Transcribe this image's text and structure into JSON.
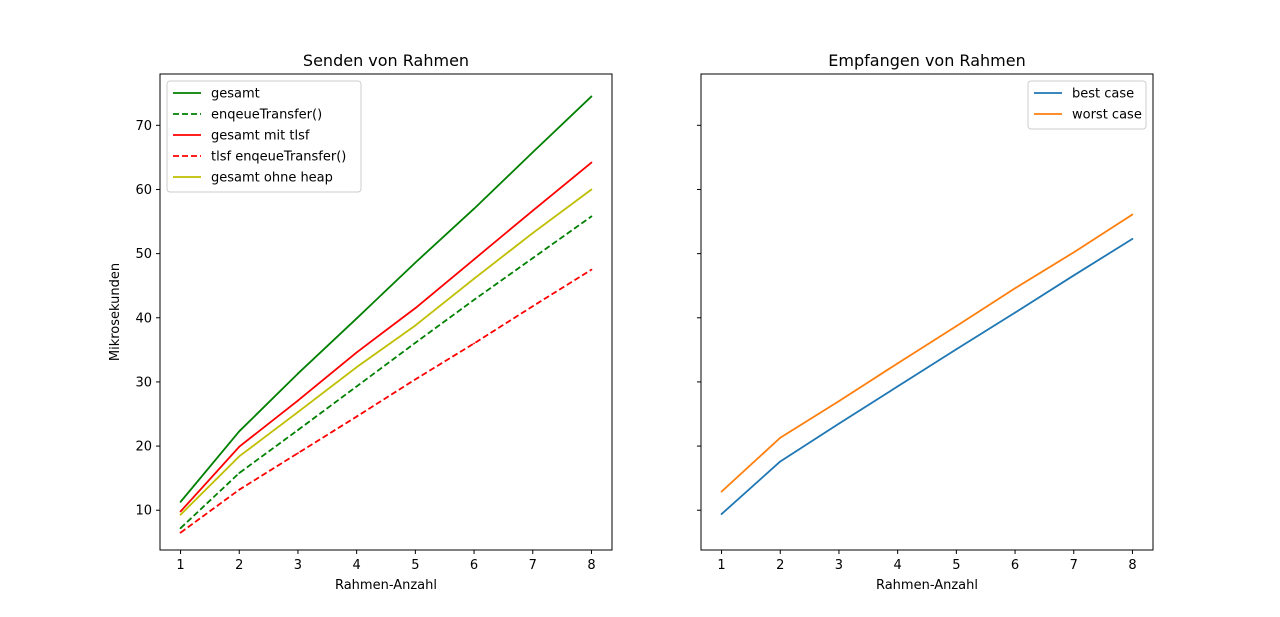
{
  "chart_data": [
    {
      "type": "line",
      "title": "Senden von Rahmen",
      "xlabel": "Rahmen-Anzahl",
      "ylabel": "Mikrosekunden",
      "x": [
        1,
        2,
        3,
        4,
        5,
        6,
        7,
        8
      ],
      "xlim": [
        0.65,
        8.35
      ],
      "ylim": [
        3.8,
        78
      ],
      "xticks": [
        1,
        2,
        3,
        4,
        5,
        6,
        7,
        8
      ],
      "yticks": [
        10,
        20,
        30,
        40,
        50,
        60,
        70
      ],
      "grid": false,
      "legend_position": "upper-left",
      "series": [
        {
          "name": "gesamt",
          "color": "#008000",
          "linestyle": "solid",
          "values": [
            11.3,
            22.3,
            31.3,
            39.9,
            48.6,
            57.0,
            65.8,
            74.5
          ]
        },
        {
          "name": "enqeueTransfer()",
          "color": "#008000",
          "linestyle": "dashed",
          "values": [
            7.2,
            15.8,
            22.5,
            29.3,
            36.1,
            42.8,
            49.3,
            55.8
          ]
        },
        {
          "name": "gesamt mit tlsf",
          "color": "#ff0000",
          "linestyle": "solid",
          "values": [
            9.8,
            19.9,
            27.1,
            34.6,
            41.5,
            49.1,
            56.7,
            64.2
          ]
        },
        {
          "name": "tlsf enqeueTransfer()",
          "color": "#ff0000",
          "linestyle": "dashed",
          "values": [
            6.5,
            13.2,
            18.9,
            24.6,
            30.4,
            36.0,
            41.8,
            47.5
          ]
        },
        {
          "name": "gesamt ohne heap",
          "color": "#bfbf00",
          "linestyle": "solid",
          "values": [
            9.3,
            18.4,
            25.3,
            32.3,
            38.8,
            46.1,
            53.2,
            60.0
          ]
        }
      ]
    },
    {
      "type": "line",
      "title": "Empfangen von Rahmen",
      "xlabel": "Rahmen-Anzahl",
      "ylabel": "",
      "x": [
        1,
        2,
        3,
        4,
        5,
        6,
        7,
        8
      ],
      "xlim": [
        0.65,
        8.35
      ],
      "ylim": [
        3.8,
        78
      ],
      "xticks": [
        1,
        2,
        3,
        4,
        5,
        6,
        7,
        8
      ],
      "yticks": [
        10,
        20,
        30,
        40,
        50,
        60,
        70
      ],
      "shared_y": true,
      "grid": false,
      "legend_position": "upper-right",
      "series": [
        {
          "name": "best case",
          "color": "#1f77b4",
          "linestyle": "solid",
          "values": [
            9.4,
            17.6,
            23.5,
            29.3,
            35.1,
            40.8,
            46.6,
            52.3
          ]
        },
        {
          "name": "worst case",
          "color": "#ff7f0e",
          "linestyle": "solid",
          "values": [
            12.9,
            21.3,
            27.0,
            32.9,
            38.7,
            44.6,
            50.2,
            56.1
          ]
        }
      ]
    }
  ]
}
